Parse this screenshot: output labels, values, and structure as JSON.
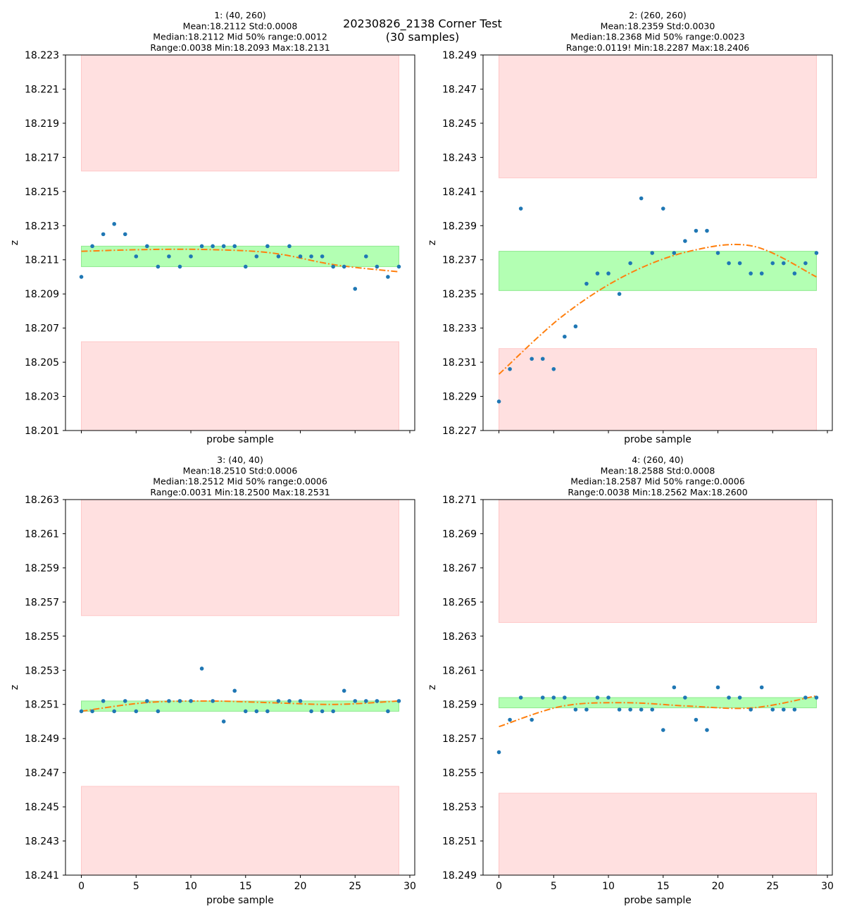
{
  "figure": {
    "title_line1": "20230826_2138 Corner Test",
    "title_line2": "(30 samples)"
  },
  "colors": {
    "points": "#1f77b4",
    "fit": "#ff7f0e",
    "band_good": "#b3ffb3",
    "band_bad": "#ffe0e0"
  },
  "chart_data": [
    {
      "type": "scatter",
      "title_lines": [
        "1: (40, 260)",
        "Mean:18.2112  Std:0.0008",
        "Median:18.2112  Mid 50% range:0.0012",
        "Range:0.0038  Min:18.2093  Max:18.2131"
      ],
      "xlabel": "probe sample",
      "ylabel": "z",
      "xlim": [
        -1.45,
        30.45
      ],
      "ylim": [
        18.201,
        18.223
      ],
      "yticks": [
        18.201,
        18.203,
        18.205,
        18.207,
        18.209,
        18.211,
        18.213,
        18.215,
        18.217,
        18.219,
        18.221,
        18.223
      ],
      "xticks": [
        0,
        5,
        10,
        15,
        20,
        25,
        30
      ],
      "show_xticklabels": false,
      "y": [
        18.21,
        18.2118,
        18.2125,
        18.2131,
        18.2125,
        18.2112,
        18.2118,
        18.2106,
        18.2112,
        18.2106,
        18.2112,
        18.2118,
        18.2118,
        18.2118,
        18.2118,
        18.2106,
        18.2112,
        18.2118,
        18.2112,
        18.2118,
        18.2112,
        18.2112,
        18.2112,
        18.2106,
        18.2106,
        18.2093,
        18.2112,
        18.2106,
        18.21,
        18.2106
      ],
      "fit": [
        18.2115,
        18.2116,
        18.2116,
        18.2114,
        18.2107,
        18.2103
      ],
      "good_band": [
        18.2106,
        18.2118
      ],
      "bad_bands": [
        [
          18.2162,
          18.223
        ],
        [
          18.201,
          18.2062
        ]
      ]
    },
    {
      "type": "scatter",
      "title_lines": [
        "2: (260, 260)",
        "Mean:18.2359  Std:0.0030",
        "Median:18.2368  Mid 50% range:0.0023",
        "Range:0.0119!  Min:18.2287  Max:18.2406"
      ],
      "xlabel": "probe sample",
      "ylabel": "z",
      "xlim": [
        -1.45,
        30.45
      ],
      "ylim": [
        18.227,
        18.249
      ],
      "yticks": [
        18.227,
        18.229,
        18.231,
        18.233,
        18.235,
        18.237,
        18.239,
        18.241,
        18.243,
        18.245,
        18.247,
        18.249
      ],
      "xticks": [
        0,
        5,
        10,
        15,
        20,
        25,
        30
      ],
      "show_xticklabels": false,
      "y": [
        18.2287,
        18.2306,
        18.24,
        18.2312,
        18.2312,
        18.2306,
        18.2325,
        18.2331,
        18.2356,
        18.2362,
        18.2362,
        18.235,
        18.2368,
        18.2406,
        18.2374,
        18.24,
        18.2374,
        18.2381,
        18.2387,
        18.2387,
        18.2374,
        18.2368,
        18.2368,
        18.2362,
        18.2362,
        18.2368,
        18.2368,
        18.2362,
        18.2368,
        18.2374
      ],
      "fit": [
        18.2303,
        18.2337,
        18.2361,
        18.2375,
        18.2378,
        18.236
      ],
      "good_band": [
        18.2352,
        18.2375
      ],
      "bad_bands": [
        [
          18.2418,
          18.249
        ],
        [
          18.227,
          18.2318
        ]
      ]
    },
    {
      "type": "scatter",
      "title_lines": [
        "3: (40, 40)",
        "Mean:18.2510  Std:0.0006",
        "Median:18.2512  Mid 50% range:0.0006",
        "Range:0.0031  Min:18.2500  Max:18.2531"
      ],
      "xlabel": "probe sample",
      "ylabel": "z",
      "xlim": [
        -1.45,
        30.45
      ],
      "ylim": [
        18.241,
        18.263
      ],
      "yticks": [
        18.241,
        18.243,
        18.245,
        18.247,
        18.249,
        18.251,
        18.253,
        18.255,
        18.257,
        18.259,
        18.261,
        18.263
      ],
      "xticks": [
        0,
        5,
        10,
        15,
        20,
        25,
        30
      ],
      "show_xticklabels": true,
      "y": [
        18.2506,
        18.2506,
        18.2512,
        18.2506,
        18.2512,
        18.2506,
        18.2512,
        18.2506,
        18.2512,
        18.2512,
        18.2512,
        18.2531,
        18.2512,
        18.25,
        18.2518,
        18.2506,
        18.2506,
        18.2506,
        18.2512,
        18.2512,
        18.2512,
        18.2506,
        18.2506,
        18.2506,
        18.2518,
        18.2512,
        18.2512,
        18.2512,
        18.2506,
        18.2512
      ],
      "fit": [
        18.2506,
        18.2511,
        18.2512,
        18.2511,
        18.251,
        18.2512
      ],
      "good_band": [
        18.2506,
        18.2512
      ],
      "bad_bands": [
        [
          18.2562,
          18.263
        ],
        [
          18.241,
          18.2462
        ]
      ]
    },
    {
      "type": "scatter",
      "title_lines": [
        "4: (260, 40)",
        "Mean:18.2588  Std:0.0008",
        "Median:18.2587  Mid 50% range:0.0006",
        "Range:0.0038  Min:18.2562  Max:18.2600"
      ],
      "xlabel": "probe sample",
      "ylabel": "z",
      "xlim": [
        -1.45,
        30.45
      ],
      "ylim": [
        18.249,
        18.271
      ],
      "yticks": [
        18.249,
        18.251,
        18.253,
        18.255,
        18.257,
        18.259,
        18.261,
        18.263,
        18.265,
        18.267,
        18.269,
        18.271
      ],
      "xticks": [
        0,
        5,
        10,
        15,
        20,
        25,
        30
      ],
      "show_xticklabels": true,
      "y": [
        18.2562,
        18.2581,
        18.2594,
        18.2581,
        18.2594,
        18.2594,
        18.2594,
        18.2587,
        18.2587,
        18.2594,
        18.2594,
        18.2587,
        18.2587,
        18.2587,
        18.2587,
        18.2575,
        18.26,
        18.2594,
        18.2581,
        18.2575,
        18.26,
        18.2594,
        18.2594,
        18.2587,
        18.26,
        18.2587,
        18.2587,
        18.2587,
        18.2594,
        18.2594
      ],
      "fit": [
        18.2577,
        18.2589,
        18.2591,
        18.2589,
        18.2588,
        18.2595
      ],
      "good_band": [
        18.2588,
        18.2594
      ],
      "bad_bands": [
        [
          18.2638,
          18.271
        ],
        [
          18.249,
          18.2538
        ]
      ]
    }
  ]
}
